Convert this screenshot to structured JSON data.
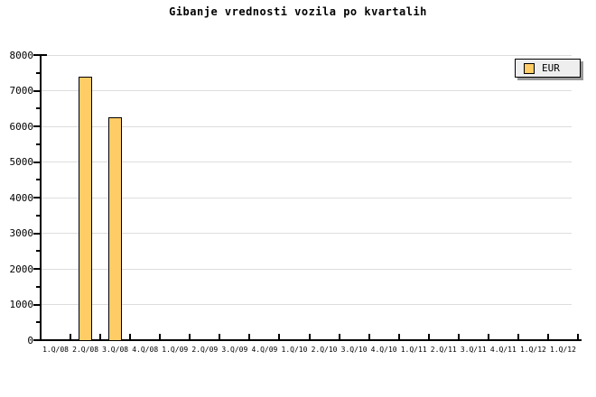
{
  "chart_data": {
    "type": "bar",
    "title": "Gibanje vrednosti vozila po kvartalih",
    "categories": [
      "1.Q/08",
      "2.Q/08",
      "3.Q/08",
      "4.Q/08",
      "1.Q/09",
      "2.Q/09",
      "3.Q/09",
      "4.Q/09",
      "1.Q/10",
      "2.Q/10",
      "3.Q/10",
      "4.Q/10",
      "1.Q/11",
      "2.Q/11",
      "3.Q/11",
      "4.Q/11",
      "1.Q/12",
      "1.Q/12"
    ],
    "series": [
      {
        "name": "EUR",
        "color": "#FFCC66",
        "border_color": "#000000",
        "values": [
          null,
          7380,
          6250,
          null,
          null,
          null,
          null,
          null,
          null,
          null,
          null,
          null,
          null,
          null,
          null,
          null,
          null,
          null
        ]
      }
    ],
    "xlabel": "",
    "ylabel": "",
    "ylim": [
      0,
      8000
    ],
    "ytick_interval": 1000,
    "yminor_tick_interval": 500,
    "ytick_labels": [
      "0",
      "1000",
      "2000",
      "3000",
      "4000",
      "5000",
      "6000",
      "7000",
      "8000"
    ],
    "grid": true,
    "grid_color": "#dddddd",
    "axis_color": "#000000",
    "background_color": "#ffffff",
    "legend": {
      "position": "top-right",
      "label": "EUR",
      "swatch_color": "#FFCC66",
      "box_color": "#eeeeee",
      "border_color": "#000000",
      "shadow_color": "#999999"
    }
  }
}
